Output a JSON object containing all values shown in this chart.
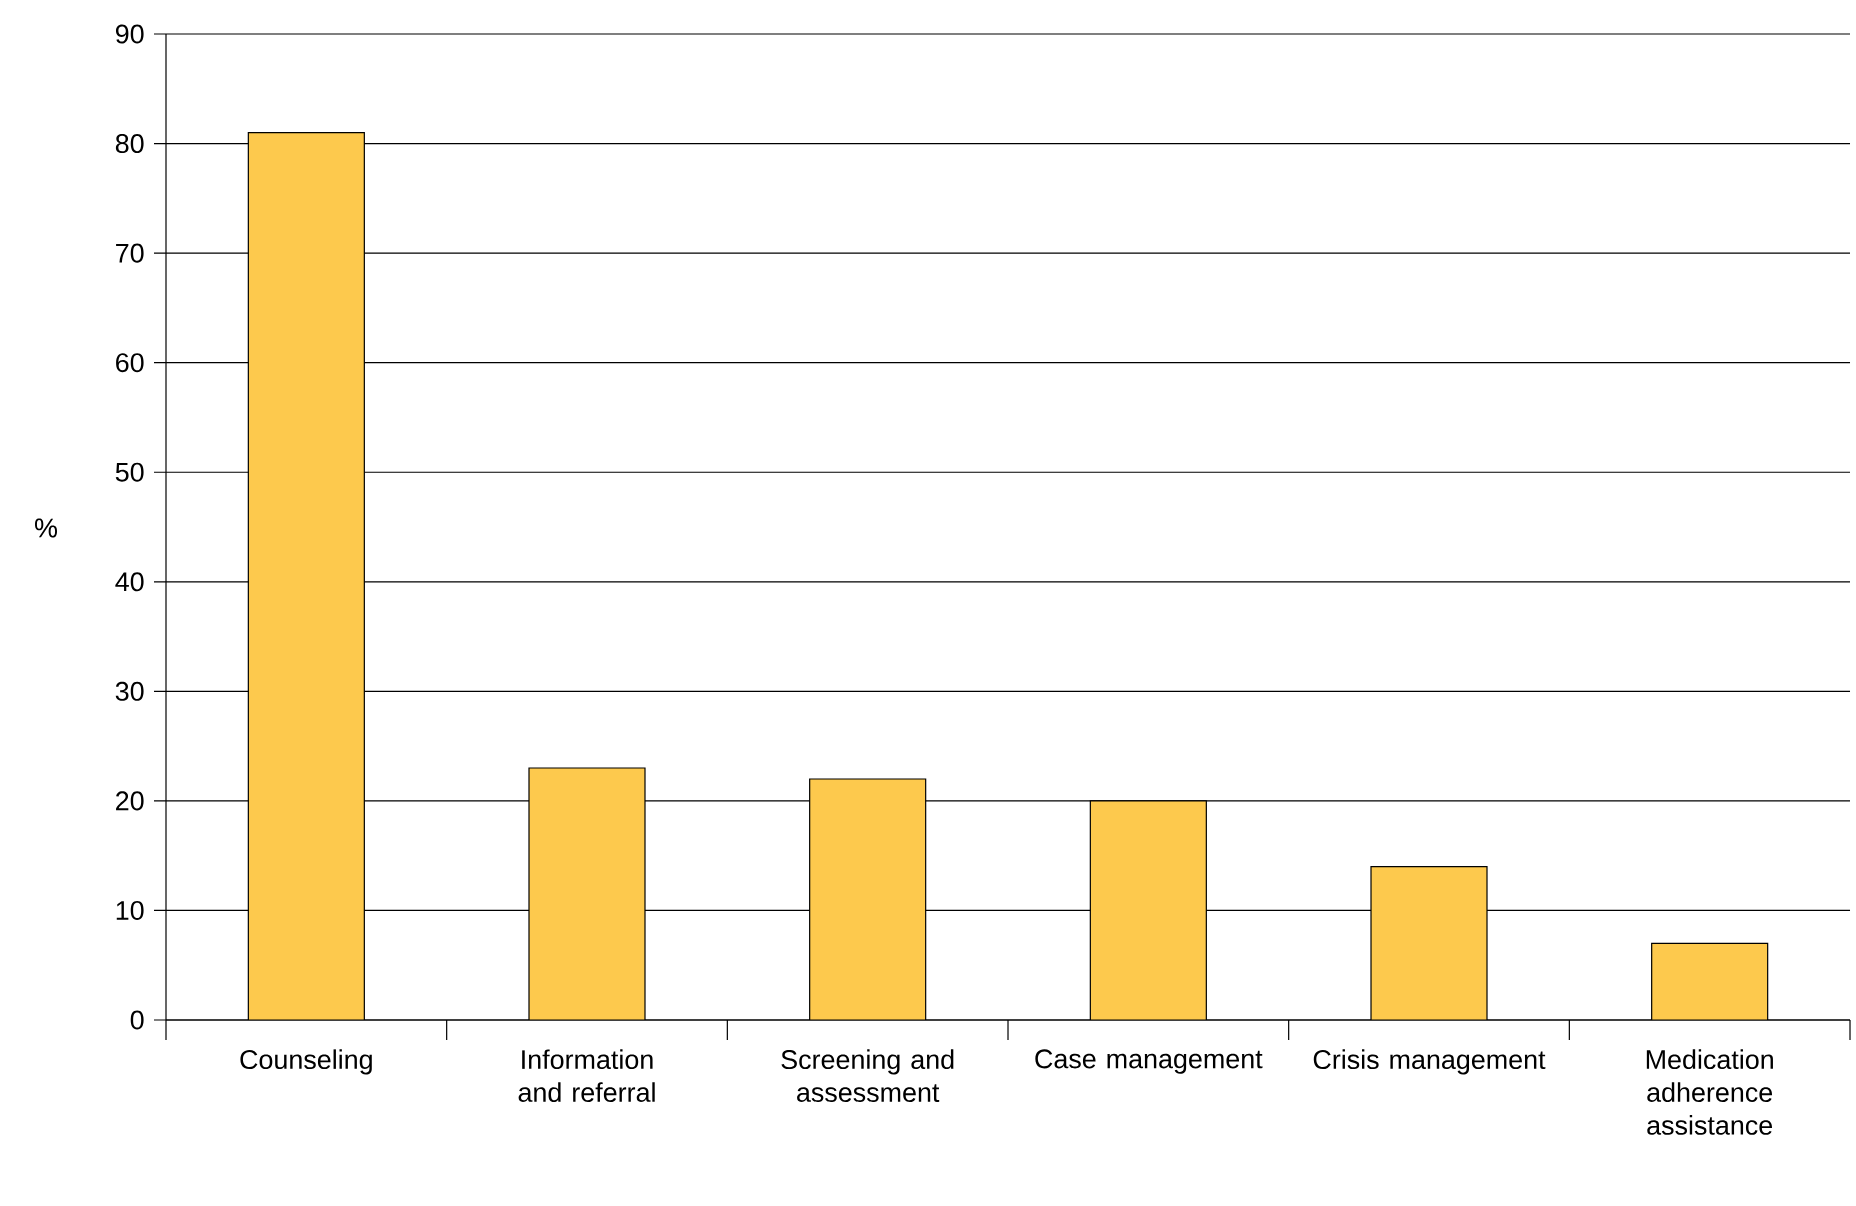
{
  "chart_data": {
    "type": "bar",
    "ylabel": "%",
    "categories": [
      "Counseling",
      "Information and referral",
      "Screening and assessment",
      "Case management",
      "Crisis management",
      "Medication adherence assistance"
    ],
    "values": [
      81,
      23,
      22,
      20,
      14,
      7
    ],
    "color": "#fdc94d",
    "ylim": [
      0,
      90
    ],
    "yticks": [
      0,
      10,
      20,
      30,
      40,
      50,
      60,
      70,
      80,
      90
    ],
    "grid": "y"
  }
}
